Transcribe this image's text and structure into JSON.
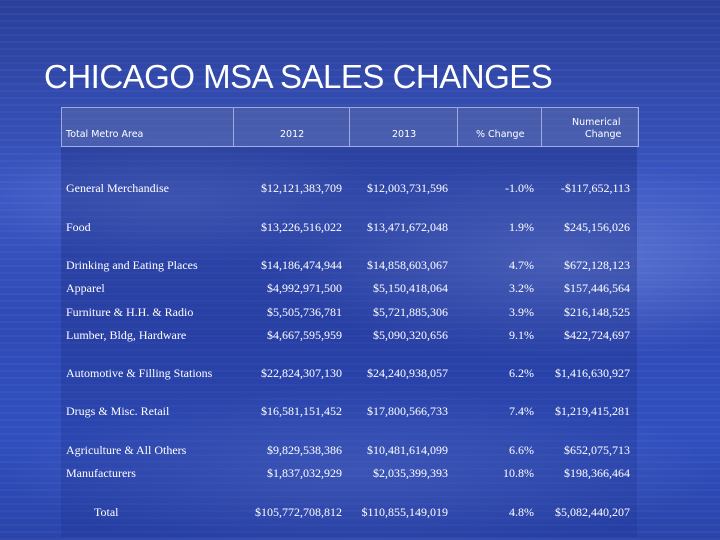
{
  "title": "CHICAGO MSA SALES CHANGES",
  "headers": {
    "category": "Total Metro Area",
    "y2012": "2012",
    "y2013": "2013",
    "pct": "% Change",
    "num_line1": "Numerical",
    "num_line2": "Change"
  },
  "rows": [
    {
      "label": "General Merchandise",
      "y2012": "$12,121,383,709",
      "y2013": "$12,003,731,596",
      "pct": "-1.0%",
      "num": "-$117,652,113"
    },
    {
      "label": "Food",
      "y2012": "$13,226,516,022",
      "y2013": "$13,471,672,048",
      "pct": "1.9%",
      "num": "$245,156,026"
    },
    {
      "label": "Drinking and Eating Places",
      "y2012": "$14,186,474,944",
      "y2013": "$14,858,603,067",
      "pct": "4.7%",
      "num": "$672,128,123"
    },
    {
      "label": "Apparel",
      "y2012": "$4,992,971,500",
      "y2013": "$5,150,418,064",
      "pct": "3.2%",
      "num": "$157,446,564"
    },
    {
      "label": "Furniture & H.H. & Radio",
      "y2012": "$5,505,736,781",
      "y2013": "$5,721,885,306",
      "pct": "3.9%",
      "num": "$216,148,525"
    },
    {
      "label": "Lumber, Bldg, Hardware",
      "y2012": "$4,667,595,959",
      "y2013": "$5,090,320,656",
      "pct": "9.1%",
      "num": "$422,724,697"
    },
    {
      "label": "Automotive & Filling Stations",
      "y2012": "$22,824,307,130",
      "y2013": "$24,240,938,057",
      "pct": "6.2%",
      "num": "$1,416,630,927"
    },
    {
      "label": "Drugs & Misc. Retail",
      "y2012": "$16,581,151,452",
      "y2013": "$17,800,566,733",
      "pct": "7.4%",
      "num": "$1,219,415,281"
    },
    {
      "label": "Agriculture & All Others",
      "y2012": "$9,829,538,386",
      "y2013": "$10,481,614,099",
      "pct": "6.6%",
      "num": "$652,075,713"
    },
    {
      "label": "Manufacturers",
      "y2012": "$1,837,032,929",
      "y2013": "$2,035,399,393",
      "pct": "10.8%",
      "num": "$198,366,464"
    },
    {
      "label": "Total",
      "y2012": "$105,772,708,812",
      "y2013": "$110,855,149,019",
      "pct": "4.8%",
      "num": "$5,082,440,207"
    }
  ]
}
